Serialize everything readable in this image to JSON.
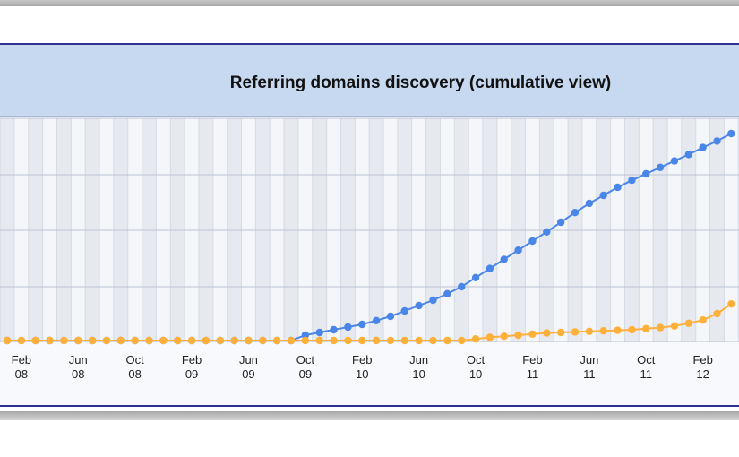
{
  "chart_data": {
    "type": "line",
    "title": "Referring domains discovery (cumulative view)",
    "xlabel": "",
    "ylabel": "",
    "grid": true,
    "legend": "none",
    "x_ticks": [
      {
        "month": "Feb",
        "year": "08",
        "index": 1
      },
      {
        "month": "Jun",
        "year": "08",
        "index": 5
      },
      {
        "month": "Oct",
        "year": "08",
        "index": 9
      },
      {
        "month": "Feb",
        "year": "09",
        "index": 13
      },
      {
        "month": "Jun",
        "year": "09",
        "index": 17
      },
      {
        "month": "Oct",
        "year": "09",
        "index": 21
      },
      {
        "month": "Feb",
        "year": "10",
        "index": 25
      },
      {
        "month": "Jun",
        "year": "10",
        "index": 29
      },
      {
        "month": "Oct",
        "year": "10",
        "index": 33
      },
      {
        "month": "Feb",
        "year": "11",
        "index": 37
      },
      {
        "month": "Jun",
        "year": "11",
        "index": 41
      },
      {
        "month": "Oct",
        "year": "11",
        "index": 45
      },
      {
        "month": "Feb",
        "year": "12",
        "index": 49
      }
    ],
    "series": [
      {
        "color": "#4a86e8",
        "values": [
          0,
          0,
          0,
          0,
          0,
          0,
          0,
          0,
          0,
          0,
          0,
          0,
          0,
          0,
          0,
          0,
          0,
          0,
          0,
          0,
          0,
          1,
          1.5,
          2,
          2.5,
          3,
          3.7,
          4.5,
          5.5,
          6.5,
          7.5,
          8.7,
          10,
          11.7,
          13.4,
          15.1,
          16.8,
          18.5,
          20.2,
          22,
          23.8,
          25.5,
          27,
          28.5,
          29.8,
          31,
          32.2,
          33.4,
          34.6,
          35.9,
          37.1,
          38.5
        ]
      },
      {
        "color": "#ffb03a",
        "values": [
          0,
          0,
          0,
          0,
          0,
          0,
          0,
          0,
          0,
          0,
          0,
          0,
          0,
          0,
          0,
          0,
          0,
          0,
          0,
          0,
          0,
          0,
          0,
          0,
          0,
          0,
          0,
          0,
          0,
          0,
          0,
          0,
          0,
          0.3,
          0.6,
          0.8,
          1.0,
          1.2,
          1.4,
          1.5,
          1.6,
          1.7,
          1.8,
          1.9,
          2.0,
          2.2,
          2.4,
          2.7,
          3.2,
          3.8,
          5.0,
          6.8
        ]
      }
    ]
  }
}
